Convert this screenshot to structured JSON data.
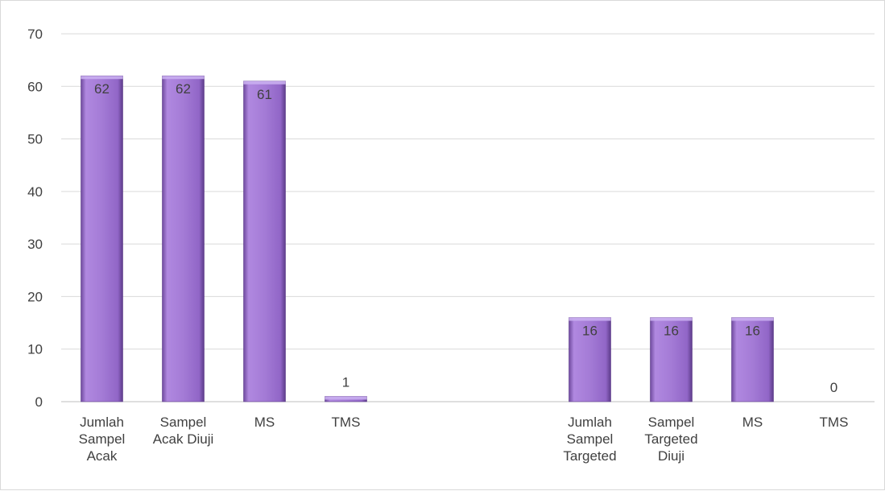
{
  "chart_data": {
    "type": "bar",
    "title": "",
    "xlabel": "",
    "ylabel": "",
    "ylim": [
      0,
      70
    ],
    "y_ticks": [
      0,
      10,
      20,
      30,
      40,
      50,
      60,
      70
    ],
    "grid": true,
    "legend": "none",
    "bar_color": "#9b6fd0",
    "categories": [
      [
        "Jumlah",
        "Sampel",
        "Acak"
      ],
      [
        "Sampel",
        "Acak Diuji"
      ],
      [
        "MS"
      ],
      [
        "TMS"
      ],
      [],
      [],
      [
        "Jumlah",
        "Sampel",
        "Targeted"
      ],
      [
        "Sampel",
        "Targeted",
        "Diuji"
      ],
      [
        "MS"
      ],
      [
        "TMS"
      ]
    ],
    "values": [
      62,
      62,
      61,
      1,
      null,
      null,
      16,
      16,
      16,
      0
    ],
    "data_labels": [
      "62",
      "62",
      "61",
      "1",
      "",
      "",
      "16",
      "16",
      "16",
      "0"
    ]
  }
}
